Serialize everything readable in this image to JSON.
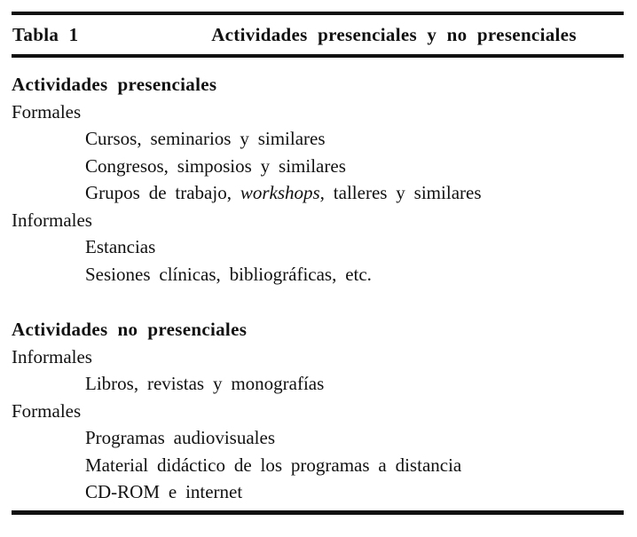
{
  "theme": {
    "ink": "#111111",
    "background": "#ffffff"
  },
  "document": {
    "header": {
      "label": "Tabla 1",
      "title": "Actividades presenciales y no presenciales"
    },
    "sections": [
      {
        "heading": "Actividades presenciales",
        "rows": [
          {
            "level": 0,
            "segments": [
              {
                "t": "Formales"
              }
            ]
          },
          {
            "level": 1,
            "segments": [
              {
                "t": "Cursos, seminarios y similares"
              }
            ]
          },
          {
            "level": 1,
            "segments": [
              {
                "t": "Congresos, simposios y similares"
              }
            ]
          },
          {
            "level": 1,
            "segments": [
              {
                "t": "Grupos de trabajo, "
              },
              {
                "t": "workshops,",
                "italic": true
              },
              {
                "t": " talleres y similares"
              }
            ]
          },
          {
            "level": 0,
            "segments": [
              {
                "t": "Informales"
              }
            ]
          },
          {
            "level": 1,
            "segments": [
              {
                "t": "Estancias"
              }
            ]
          },
          {
            "level": 1,
            "segments": [
              {
                "t": "Sesiones clínicas, bibliográficas, etc."
              }
            ]
          }
        ]
      },
      {
        "heading": "Actividades no presenciales",
        "rows": [
          {
            "level": 0,
            "segments": [
              {
                "t": "Informales"
              }
            ]
          },
          {
            "level": 1,
            "segments": [
              {
                "t": "Libros, revistas y monografías"
              }
            ]
          },
          {
            "level": 0,
            "segments": [
              {
                "t": "Formales"
              }
            ]
          },
          {
            "level": 1,
            "segments": [
              {
                "t": "Programas audiovisuales"
              }
            ]
          },
          {
            "level": 1,
            "segments": [
              {
                "t": "Material didáctico de los programas a distancia"
              }
            ]
          },
          {
            "level": 1,
            "segments": [
              {
                "t": "CD-ROM e internet"
              }
            ]
          }
        ]
      }
    ]
  }
}
